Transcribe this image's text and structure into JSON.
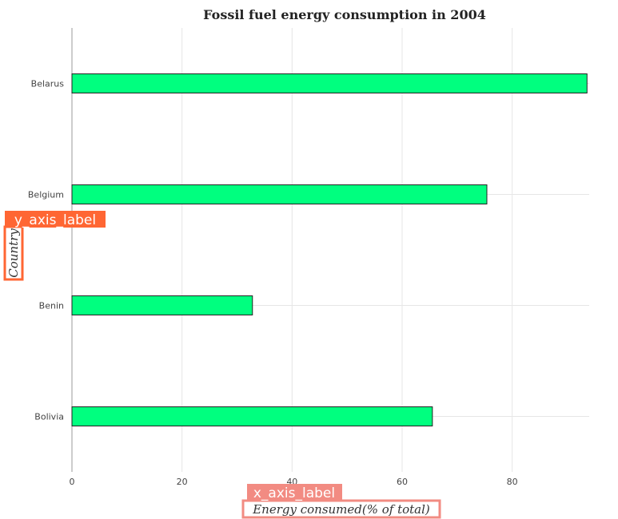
{
  "chart_data": {
    "type": "bar",
    "orientation": "horizontal",
    "title": "Fossil fuel energy consumption in 2004",
    "xlabel": "Energy consumed(% of total)",
    "ylabel": "Country",
    "xlabel_placeholder": "x_axis_label",
    "ylabel_placeholder": "y_axis_label",
    "categories": [
      "Belarus",
      "Belgium",
      "Benin",
      "Bolivia"
    ],
    "values": [
      93.6,
      75.4,
      32.8,
      65.5
    ],
    "xlim": [
      0,
      94
    ],
    "xticks": [
      0,
      20,
      40,
      60,
      80
    ],
    "grid": true,
    "bar_color": "#00ff7f",
    "bar_edge_color": "#222222",
    "overlay_color": "#ff6633"
  }
}
